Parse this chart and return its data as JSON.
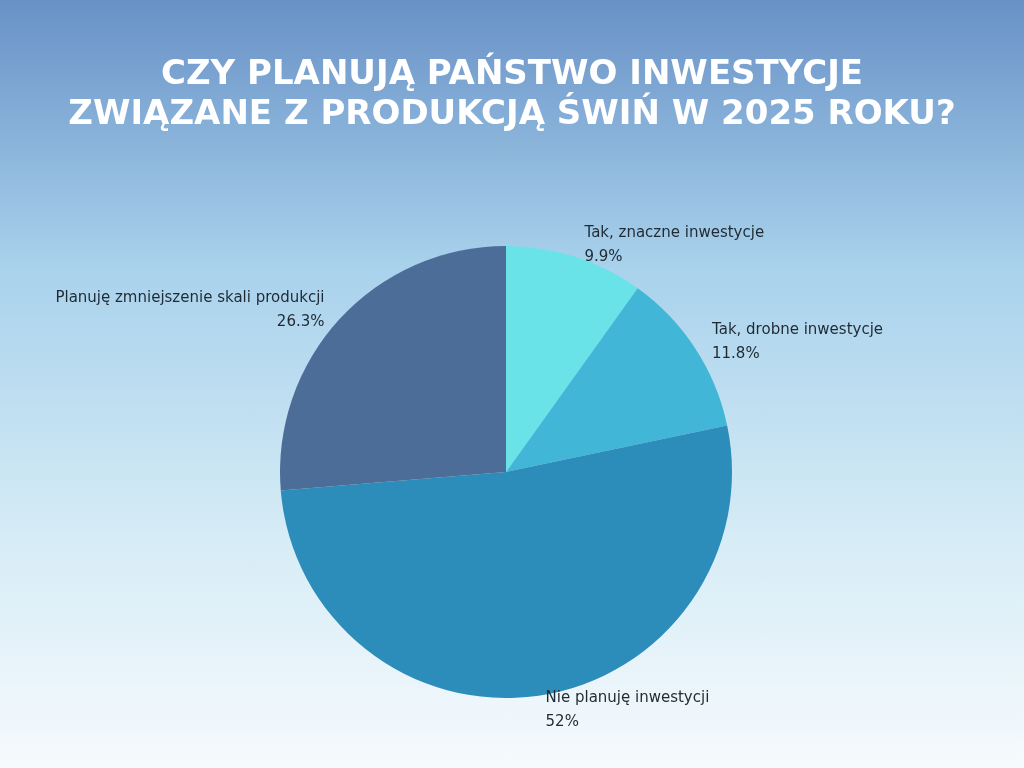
{
  "chart_data": {
    "type": "pie",
    "title": "CZY PLANUJĄ PAŃSTWO INWESTYCJE ZWIĄZANE Z PRODUKCJĄ ŚWIŃ W 2025 ROKU?",
    "categories": [
      "Tak, znaczne inwestycje",
      "Tak, drobne inwestycje",
      "Nie planuję inwestycji",
      "Planuję zmniejszenie skali produkcji"
    ],
    "values": [
      9.9,
      11.8,
      52,
      26.3
    ],
    "colors": [
      "#6ae3e8",
      "#42b6d6",
      "#2c8dba",
      "#4d6d99"
    ],
    "value_labels": [
      "9.9%",
      "11.8%",
      "52%",
      "26.3%"
    ]
  }
}
